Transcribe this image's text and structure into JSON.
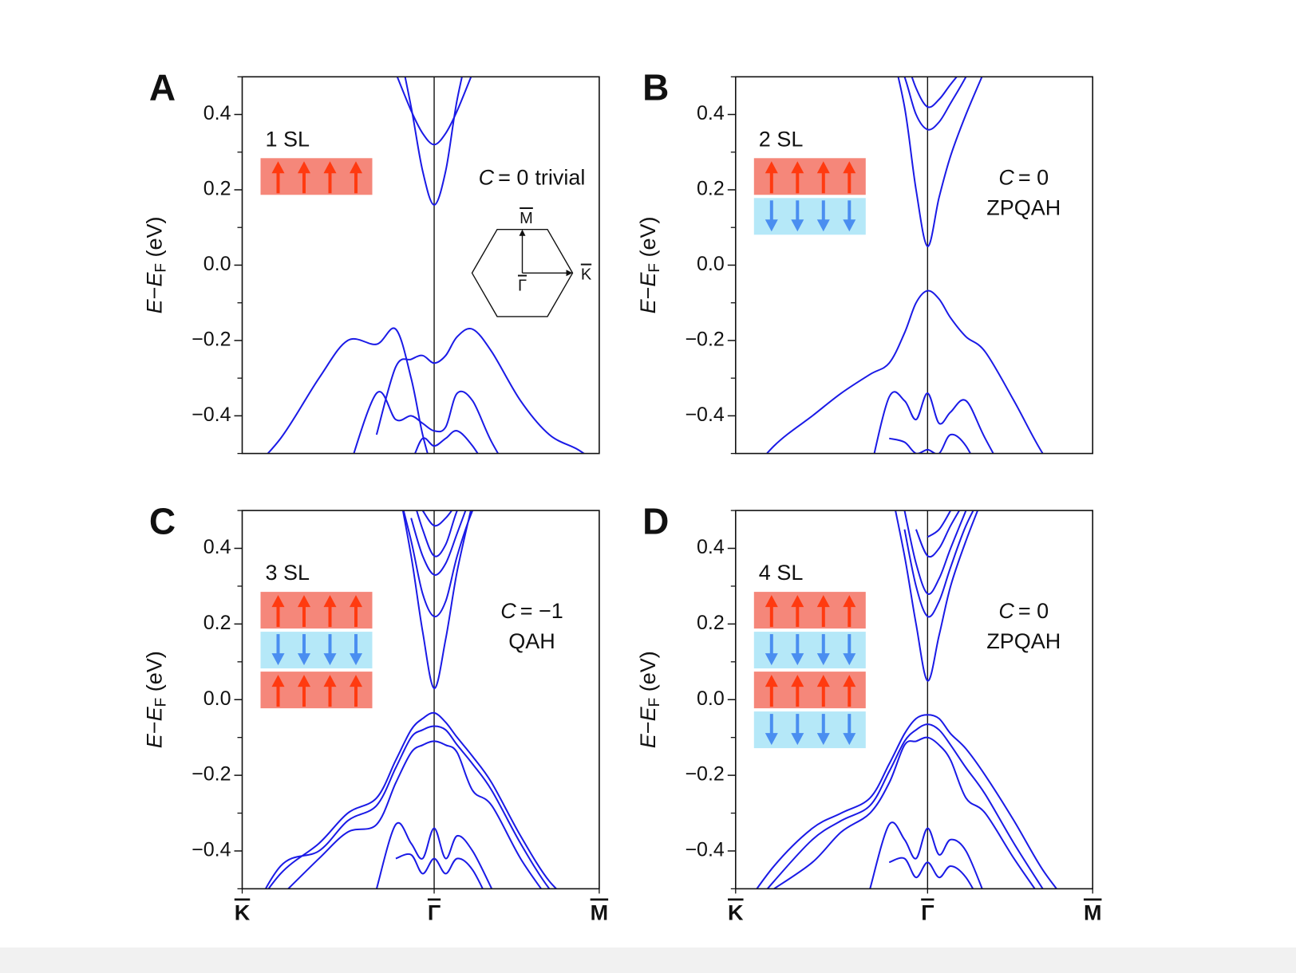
{
  "chart_data": [
    {
      "type": "line",
      "panel": "A",
      "layer_label": "1 SL",
      "chern_symbol": "C",
      "chern_value": "= 0",
      "phase": "trivial",
      "inset_labels": [
        "M",
        "K",
        "Γ"
      ],
      "ylabel": [
        "E",
        "−",
        "E",
        "F",
        " (eV)"
      ],
      "x": [
        -1,
        -0.8,
        -0.6,
        -0.45,
        -0.3,
        -0.2,
        -0.12,
        -0.06,
        0,
        0.06,
        0.12,
        0.2,
        0.3,
        0.45,
        0.6,
        0.75,
        0.86
      ],
      "xlim": [
        -1,
        0.86
      ],
      "ylim": [
        -0.5,
        0.5
      ],
      "yticks": [
        {
          "value": -0.4,
          "label": "−0.4"
        },
        {
          "value": -0.2,
          "label": "−0.2"
        },
        {
          "value": 0,
          "label": "0.0"
        },
        0.2,
        0.4
      ],
      "minor_yticks": [
        -0.5,
        -0.3,
        -0.1,
        0.1,
        0.3,
        0.5
      ],
      "series": [
        {
          "color": "#1a1ae6",
          "values": [
            null,
            null,
            null,
            null,
            null,
            0.62,
            0.42,
            0.25,
            0.16,
            0.25,
            0.44,
            0.62,
            null,
            null,
            null,
            null,
            null
          ]
        },
        {
          "color": "#1a1ae6",
          "values": [
            null,
            null,
            null,
            null,
            null,
            0.51,
            0.41,
            0.35,
            0.32,
            0.35,
            0.41,
            0.51,
            null,
            null,
            null,
            null,
            null
          ]
        },
        {
          "color": "#1a1ae6",
          "values": [
            -0.57,
            -0.46,
            -0.3,
            -0.2,
            -0.21,
            -0.17,
            -0.3,
            -0.45,
            -0.56,
            null,
            null,
            null,
            null,
            null,
            null,
            null,
            null
          ]
        },
        {
          "color": "#1a1ae6",
          "values": [
            null,
            null,
            null,
            null,
            -0.45,
            -0.27,
            -0.25,
            -0.24,
            -0.26,
            -0.24,
            -0.19,
            -0.17,
            -0.23,
            -0.36,
            -0.45,
            -0.49,
            -0.53
          ]
        },
        {
          "color": "#1a1ae6",
          "values": [
            null,
            null,
            null,
            -0.55,
            -0.34,
            -0.41,
            -0.4,
            -0.42,
            -0.44,
            -0.43,
            -0.34,
            -0.36,
            -0.47,
            -0.6,
            null,
            null,
            null
          ]
        },
        {
          "color": "#1a1ae6",
          "values": [
            null,
            null,
            null,
            null,
            null,
            -0.56,
            -0.52,
            -0.46,
            -0.48,
            -0.46,
            -0.44,
            -0.48,
            -0.56,
            null,
            null,
            null,
            null
          ]
        }
      ]
    },
    {
      "type": "line",
      "panel": "B",
      "layer_label": "2 SL",
      "chern_symbol": "C",
      "chern_value": "= 0",
      "phase": "ZPQAH",
      "ylabel": [
        "E",
        "−",
        "E",
        "F",
        " (eV)"
      ],
      "x": [
        -1,
        -0.8,
        -0.6,
        -0.45,
        -0.3,
        -0.2,
        -0.12,
        -0.06,
        0,
        0.06,
        0.12,
        0.2,
        0.3,
        0.45,
        0.6,
        0.75,
        0.86
      ],
      "xlim": [
        -1,
        0.86
      ],
      "ylim": [
        -0.5,
        0.5
      ],
      "yticks": [
        {
          "value": -0.4,
          "label": "−0.4"
        },
        {
          "value": -0.2,
          "label": "−0.2"
        },
        {
          "value": 0,
          "label": "0.0"
        },
        0.2,
        0.4
      ],
      "minor_yticks": [
        -0.5,
        -0.3,
        -0.1,
        0.1,
        0.3,
        0.5
      ],
      "series": [
        {
          "color": "#1a1ae6",
          "values": [
            null,
            null,
            null,
            null,
            null,
            0.6,
            0.42,
            0.2,
            0.05,
            0.18,
            0.29,
            0.4,
            0.52,
            null,
            null,
            null,
            null
          ]
        },
        {
          "color": "#1a1ae6",
          "values": [
            null,
            null,
            null,
            null,
            null,
            0.6,
            0.5,
            0.4,
            0.36,
            0.38,
            0.43,
            0.5,
            0.6,
            null,
            null,
            null,
            null
          ]
        },
        {
          "color": "#1a1ae6",
          "values": [
            null,
            null,
            null,
            null,
            null,
            null,
            0.56,
            0.47,
            0.42,
            0.44,
            0.48,
            0.53,
            null,
            null,
            null,
            null,
            null
          ]
        },
        {
          "color": "#1a1ae6",
          "values": [
            -0.6,
            -0.48,
            -0.4,
            -0.34,
            -0.29,
            -0.26,
            -0.18,
            -0.1,
            -0.068,
            -0.09,
            -0.14,
            -0.19,
            -0.23,
            -0.36,
            -0.5,
            -0.6,
            null
          ]
        },
        {
          "color": "#1a1ae6",
          "values": [
            null,
            null,
            null,
            null,
            -0.55,
            -0.35,
            -0.36,
            -0.41,
            -0.34,
            -0.42,
            -0.39,
            -0.36,
            -0.46,
            -0.6,
            null,
            null,
            null
          ]
        },
        {
          "color": "#1a1ae6",
          "values": [
            null,
            null,
            null,
            null,
            null,
            -0.46,
            -0.47,
            -0.5,
            -0.49,
            -0.5,
            -0.45,
            -0.48,
            -0.58,
            null,
            null,
            null,
            null
          ]
        }
      ]
    },
    {
      "type": "line",
      "panel": "C",
      "layer_label": "3 SL",
      "chern_symbol": "C",
      "chern_value": "= −1",
      "phase": "QAH",
      "ylabel": [
        "E",
        "−",
        "E",
        "F",
        " (eV)"
      ],
      "x": [
        -1,
        -0.8,
        -0.6,
        -0.45,
        -0.3,
        -0.2,
        -0.12,
        -0.06,
        0,
        0.06,
        0.12,
        0.2,
        0.3,
        0.45,
        0.6,
        0.75,
        0.86
      ],
      "xlim": [
        -1,
        0.86
      ],
      "ylim": [
        -0.5,
        0.5
      ],
      "xticks": [
        {
          "value": -1,
          "label": "K"
        },
        {
          "value": 0,
          "label": "Γ"
        },
        {
          "value": 0.86,
          "label": "M"
        }
      ],
      "yticks": [
        {
          "value": -0.4,
          "label": "−0.4"
        },
        {
          "value": -0.2,
          "label": "−0.2"
        },
        {
          "value": 0,
          "label": "0.0"
        },
        0.2,
        0.4
      ],
      "minor_yticks": [
        -0.5,
        -0.3,
        -0.1,
        0.1,
        0.3,
        0.5
      ],
      "series": [
        {
          "color": "#1a1ae6",
          "values": [
            null,
            null,
            null,
            null,
            null,
            0.6,
            0.38,
            0.18,
            0.03,
            0.16,
            0.34,
            0.52,
            null,
            null,
            null,
            null,
            null
          ]
        },
        {
          "color": "#1a1ae6",
          "values": [
            null,
            null,
            null,
            null,
            null,
            0.58,
            0.42,
            0.28,
            0.22,
            0.26,
            0.38,
            0.5,
            0.6,
            null,
            null,
            null,
            null
          ]
        },
        {
          "color": "#1a1ae6",
          "values": [
            null,
            null,
            null,
            null,
            null,
            null,
            0.48,
            0.38,
            0.33,
            0.36,
            0.44,
            0.55,
            null,
            null,
            null,
            null,
            null
          ]
        },
        {
          "color": "#1a1ae6",
          "values": [
            null,
            null,
            null,
            null,
            null,
            null,
            0.55,
            0.45,
            0.38,
            0.41,
            0.5,
            0.58,
            null,
            null,
            null,
            null,
            null
          ]
        },
        {
          "color": "#1a1ae6",
          "values": [
            null,
            null,
            null,
            null,
            null,
            null,
            null,
            0.5,
            0.46,
            0.48,
            0.52,
            null,
            null,
            null,
            null,
            null,
            null
          ]
        },
        {
          "color": "#1a1ae6",
          "values": [
            -0.6,
            -0.46,
            -0.38,
            -0.3,
            -0.26,
            -0.16,
            -0.08,
            -0.05,
            -0.035,
            -0.06,
            -0.1,
            -0.15,
            -0.22,
            -0.36,
            -0.48,
            -0.55,
            null
          ]
        },
        {
          "color": "#1a1ae6",
          "values": [
            -0.62,
            -0.44,
            -0.4,
            -0.32,
            -0.28,
            -0.18,
            -0.1,
            -0.08,
            -0.07,
            -0.08,
            -0.12,
            -0.17,
            -0.24,
            -0.38,
            -0.5,
            -0.58,
            null
          ]
        },
        {
          "color": "#1a1ae6",
          "values": [
            null,
            -0.52,
            -0.42,
            -0.35,
            -0.33,
            -0.22,
            -0.14,
            -0.12,
            -0.11,
            -0.12,
            -0.14,
            -0.24,
            -0.28,
            -0.42,
            -0.53,
            null,
            null
          ]
        },
        {
          "color": "#1a1ae6",
          "values": [
            null,
            null,
            null,
            null,
            -0.5,
            -0.33,
            -0.38,
            -0.42,
            -0.34,
            -0.42,
            -0.36,
            -0.4,
            -0.5,
            null,
            null,
            null,
            null
          ]
        },
        {
          "color": "#1a1ae6",
          "values": [
            null,
            null,
            null,
            null,
            null,
            -0.42,
            -0.41,
            -0.46,
            -0.42,
            -0.46,
            -0.42,
            -0.45,
            -0.55,
            null,
            null,
            null,
            null
          ]
        }
      ]
    },
    {
      "type": "line",
      "panel": "D",
      "layer_label": "4 SL",
      "chern_symbol": "C",
      "chern_value": "= 0",
      "phase": "ZPQAH",
      "ylabel": [
        "E",
        "−",
        "E",
        "F",
        " (eV)"
      ],
      "x": [
        -1,
        -0.8,
        -0.6,
        -0.45,
        -0.3,
        -0.2,
        -0.12,
        -0.06,
        0,
        0.06,
        0.12,
        0.2,
        0.3,
        0.45,
        0.6,
        0.75,
        0.86
      ],
      "xlim": [
        -1,
        0.86
      ],
      "ylim": [
        -0.5,
        0.5
      ],
      "xticks": [
        {
          "value": -1,
          "label": "K"
        },
        {
          "value": 0,
          "label": "Γ"
        },
        {
          "value": 0.86,
          "label": "M"
        }
      ],
      "yticks": [
        {
          "value": -0.4,
          "label": "−0.4"
        },
        {
          "value": -0.2,
          "label": "−0.2"
        },
        {
          "value": 0,
          "label": "0.0"
        },
        0.2,
        0.4
      ],
      "minor_yticks": [
        -0.5,
        -0.3,
        -0.1,
        0.1,
        0.3,
        0.5
      ],
      "series": [
        {
          "color": "#1a1ae6",
          "values": [
            null,
            null,
            null,
            null,
            null,
            0.58,
            0.38,
            0.2,
            0.05,
            0.17,
            0.3,
            0.42,
            0.55,
            null,
            null,
            null,
            null
          ]
        },
        {
          "color": "#1a1ae6",
          "values": [
            null,
            null,
            null,
            null,
            null,
            null,
            0.45,
            0.3,
            0.22,
            0.26,
            0.35,
            0.46,
            0.56,
            null,
            null,
            null,
            null
          ]
        },
        {
          "color": "#1a1ae6",
          "values": [
            null,
            null,
            null,
            null,
            null,
            null,
            0.5,
            0.36,
            0.28,
            0.32,
            0.4,
            0.5,
            null,
            null,
            null,
            null,
            null
          ]
        },
        {
          "color": "#1a1ae6",
          "values": [
            null,
            null,
            null,
            null,
            null,
            null,
            null,
            0.45,
            0.38,
            0.4,
            0.46,
            0.53,
            null,
            null,
            null,
            null,
            null
          ]
        },
        {
          "color": "#1a1ae6",
          "values": [
            null,
            null,
            null,
            null,
            null,
            null,
            null,
            null,
            0.43,
            0.45,
            0.5,
            null,
            null,
            null,
            null,
            null,
            null
          ]
        },
        {
          "color": "#1a1ae6",
          "values": [
            -0.58,
            -0.44,
            -0.34,
            -0.3,
            -0.26,
            -0.17,
            -0.09,
            -0.05,
            -0.04,
            -0.05,
            -0.09,
            -0.13,
            -0.2,
            -0.32,
            -0.45,
            -0.55,
            null
          ]
        },
        {
          "color": "#1a1ae6",
          "values": [
            -0.6,
            -0.48,
            -0.37,
            -0.32,
            -0.28,
            -0.19,
            -0.11,
            -0.08,
            -0.065,
            -0.08,
            -0.12,
            -0.18,
            -0.25,
            -0.38,
            -0.5,
            null,
            null
          ]
        },
        {
          "color": "#1a1ae6",
          "values": [
            null,
            -0.5,
            -0.43,
            -0.35,
            -0.3,
            -0.22,
            -0.12,
            -0.11,
            -0.1,
            -0.12,
            -0.16,
            -0.26,
            -0.3,
            -0.42,
            -0.53,
            null,
            null
          ]
        },
        {
          "color": "#1a1ae6",
          "values": [
            null,
            null,
            null,
            null,
            -0.5,
            -0.33,
            -0.37,
            -0.42,
            -0.34,
            -0.41,
            -0.37,
            -0.4,
            -0.52,
            null,
            null,
            null,
            null
          ]
        },
        {
          "color": "#1a1ae6",
          "values": [
            null,
            null,
            null,
            null,
            null,
            -0.43,
            -0.42,
            -0.47,
            -0.43,
            -0.47,
            -0.44,
            -0.47,
            -0.56,
            null,
            null,
            null,
            null
          ]
        }
      ]
    }
  ]
}
